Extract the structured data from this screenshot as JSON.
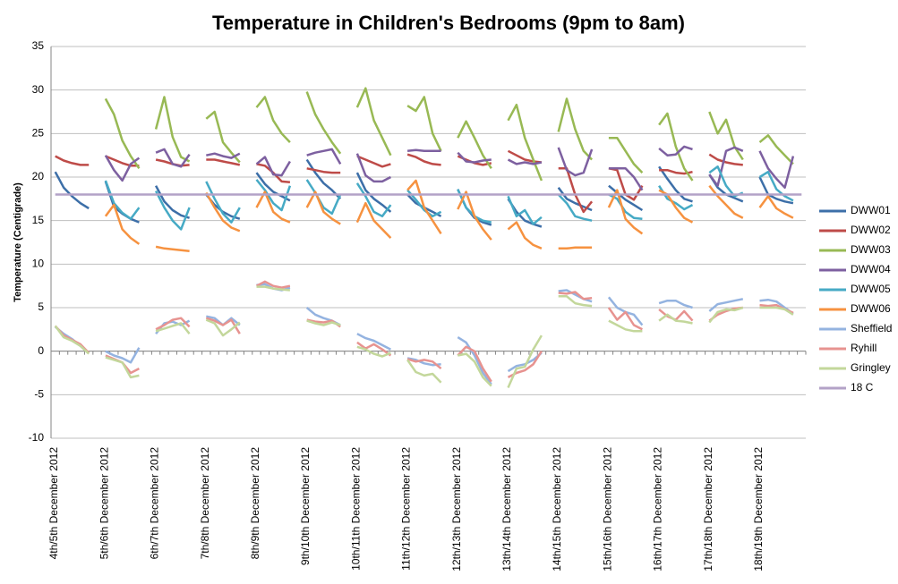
{
  "chart_data": {
    "type": "line",
    "title": "Temperature in Children's Bedrooms (9pm to 8am)",
    "y_label": "Temperature (Centigrade)",
    "categories": [
      "4th/5th December 2012",
      null,
      null,
      null,
      null,
      null,
      "5th/6th December 2012",
      null,
      null,
      null,
      null,
      null,
      "6th/7th December 2012",
      null,
      null,
      null,
      null,
      null,
      "7th/8th December 2012",
      null,
      null,
      null,
      null,
      null,
      "8th/9th December 2012",
      null,
      null,
      null,
      null,
      null,
      "9th/10th December 2012",
      null,
      null,
      null,
      null,
      null,
      "10th/11th December 2012",
      null,
      null,
      null,
      null,
      null,
      "11th/12th December 2012",
      null,
      null,
      null,
      null,
      null,
      "12th/13th December 2012",
      null,
      null,
      null,
      null,
      null,
      "13th/14th December 2012",
      null,
      null,
      null,
      null,
      null,
      "14th/15th December 2012",
      null,
      null,
      null,
      null,
      null,
      "15th/16th December 2012",
      null,
      null,
      null,
      null,
      null,
      "16th/17th December 2012",
      null,
      null,
      null,
      null,
      null,
      "17th/18th December 2012",
      null,
      null,
      null,
      null,
      null,
      "18th/19th December 2012",
      null,
      null,
      null,
      null,
      null
    ],
    "ylim": [
      -10,
      35
    ],
    "yticks": [
      -10,
      -5,
      0,
      5,
      10,
      15,
      20,
      25,
      30,
      35
    ],
    "grid": true,
    "legend": "right",
    "series": [
      {
        "name": "DWW01",
        "color": "#3d6fa8",
        "values": [
          20.6,
          18.8,
          17.8,
          17.0,
          16.4,
          null,
          19.5,
          16.6,
          15.8,
          15.2,
          14.8,
          null,
          19.0,
          17.2,
          16.2,
          15.6,
          15.3,
          null,
          18.0,
          16.8,
          16.0,
          15.5,
          15.2,
          null,
          20.5,
          19.2,
          18.3,
          17.8,
          17.3,
          null,
          22.0,
          20.5,
          19.3,
          18.5,
          17.5,
          null,
          20.5,
          18.5,
          17.5,
          16.8,
          16.0,
          null,
          18.0,
          17.0,
          16.5,
          16.0,
          15.5,
          null,
          18.6,
          16.5,
          15.3,
          14.8,
          14.5,
          null,
          17.5,
          16.0,
          15.0,
          14.6,
          14.3,
          null,
          18.8,
          17.5,
          17.0,
          16.6,
          16.2,
          null,
          19.0,
          18.2,
          17.4,
          16.8,
          16.2,
          null,
          21.2,
          19.8,
          18.5,
          17.5,
          17.2,
          null,
          20.3,
          18.8,
          18.0,
          17.6,
          17.2,
          null,
          20.0,
          18.0,
          17.5,
          17.2,
          17.0,
          null
        ]
      },
      {
        "name": "DWW02",
        "color": "#be4b48",
        "values": [
          22.4,
          21.9,
          21.6,
          21.4,
          21.4,
          null,
          22.4,
          22.0,
          21.6,
          21.3,
          21.3,
          null,
          22.0,
          21.8,
          21.5,
          21.3,
          21.4,
          null,
          22.0,
          22.0,
          21.8,
          21.6,
          21.4,
          null,
          21.5,
          21.3,
          20.5,
          19.5,
          19.4,
          null,
          21.0,
          20.8,
          20.6,
          20.5,
          20.5,
          null,
          22.4,
          22.0,
          21.6,
          21.2,
          21.5,
          null,
          22.6,
          22.3,
          21.8,
          21.5,
          21.4,
          null,
          22.4,
          22.0,
          21.6,
          21.4,
          21.6,
          null,
          23.0,
          22.5,
          22.0,
          21.8,
          21.7,
          null,
          21.0,
          21.0,
          18.0,
          16.0,
          17.2,
          null,
          21.0,
          20.8,
          18.0,
          17.4,
          19.0,
          null,
          20.8,
          20.8,
          20.5,
          20.4,
          20.6,
          null,
          22.6,
          22.0,
          21.7,
          21.5,
          21.4,
          null,
          null,
          null,
          null,
          null,
          null,
          null
        ]
      },
      {
        "name": "DWW03",
        "color": "#98b954",
        "values": [
          null,
          null,
          null,
          null,
          null,
          null,
          29.0,
          27.2,
          24.2,
          22.4,
          21.0,
          null,
          25.5,
          29.2,
          24.6,
          22.3,
          21.8,
          null,
          26.7,
          27.5,
          24.0,
          22.8,
          21.7,
          null,
          28.0,
          29.2,
          26.5,
          25.0,
          24.0,
          null,
          29.8,
          27.2,
          25.5,
          24.0,
          22.7,
          null,
          28.0,
          30.2,
          26.5,
          24.5,
          22.5,
          null,
          28.2,
          27.6,
          29.2,
          25.0,
          23.0,
          null,
          24.5,
          26.4,
          24.5,
          22.5,
          21.0,
          null,
          26.5,
          28.3,
          24.5,
          22.0,
          19.6,
          null,
          25.2,
          29.0,
          25.5,
          23.0,
          22.0,
          null,
          24.5,
          24.5,
          23.0,
          21.5,
          20.5,
          null,
          26.0,
          27.3,
          23.5,
          21.0,
          19.6,
          null,
          27.5,
          25.0,
          26.6,
          23.5,
          22.0,
          null,
          24.0,
          24.8,
          23.5,
          22.5,
          21.5,
          null
        ]
      },
      {
        "name": "DWW04",
        "color": "#7d60a0",
        "values": [
          null,
          null,
          null,
          null,
          null,
          null,
          22.5,
          20.8,
          19.6,
          21.5,
          22.2,
          null,
          22.8,
          23.2,
          21.5,
          21.2,
          22.6,
          null,
          22.5,
          22.7,
          22.4,
          22.2,
          22.7,
          null,
          21.5,
          22.3,
          20.3,
          20.2,
          21.8,
          null,
          22.5,
          22.8,
          23.0,
          23.2,
          21.5,
          null,
          22.7,
          20.2,
          19.5,
          19.5,
          20.0,
          null,
          23.0,
          23.1,
          23.0,
          23.0,
          23.0,
          null,
          22.8,
          21.8,
          21.7,
          21.9,
          22.0,
          null,
          22.0,
          21.5,
          21.7,
          21.5,
          21.7,
          null,
          23.4,
          20.8,
          20.2,
          20.5,
          23.2,
          null,
          21.0,
          21.0,
          21.0,
          20.0,
          18.5,
          null,
          23.3,
          22.5,
          22.6,
          23.5,
          23.2,
          null,
          20.3,
          19.0,
          23.0,
          23.4,
          23.0,
          null,
          23.0,
          21.0,
          19.8,
          18.8,
          22.4,
          null
        ]
      },
      {
        "name": "DWW05",
        "color": "#46aac5",
        "values": [
          null,
          null,
          null,
          null,
          null,
          null,
          19.6,
          17.0,
          15.9,
          15.2,
          16.5,
          null,
          18.4,
          16.5,
          15.0,
          14.0,
          16.5,
          null,
          19.5,
          17.5,
          15.8,
          14.8,
          16.5,
          null,
          19.7,
          18.5,
          17.0,
          16.2,
          19.0,
          null,
          19.7,
          18.2,
          16.5,
          15.8,
          18.0,
          null,
          19.3,
          17.8,
          16.0,
          15.5,
          16.8,
          null,
          18.5,
          17.4,
          16.2,
          15.5,
          16.0,
          null,
          18.6,
          16.5,
          15.5,
          15.0,
          14.8,
          null,
          17.8,
          15.5,
          16.2,
          14.6,
          15.4,
          null,
          18.0,
          17.0,
          15.5,
          15.2,
          15.0,
          null,
          18.0,
          17.5,
          16.0,
          15.3,
          15.2,
          null,
          19.0,
          17.5,
          17.0,
          16.3,
          16.8,
          null,
          20.5,
          21.2,
          19.0,
          17.8,
          18.2,
          null,
          20.0,
          20.6,
          18.6,
          17.8,
          17.3,
          null
        ]
      },
      {
        "name": "DWW06",
        "color": "#f69240",
        "values": [
          null,
          null,
          null,
          null,
          null,
          null,
          15.5,
          16.8,
          14.0,
          13.0,
          12.3,
          null,
          12.0,
          11.8,
          11.7,
          11.6,
          11.5,
          null,
          18.2,
          16.5,
          15.0,
          14.2,
          13.8,
          null,
          16.5,
          18.3,
          16.0,
          15.2,
          14.8,
          null,
          16.5,
          18.3,
          16.0,
          15.2,
          14.6,
          null,
          14.8,
          17.0,
          15.0,
          14.0,
          13.0,
          null,
          18.5,
          19.6,
          16.5,
          15.0,
          13.5,
          null,
          16.3,
          18.3,
          15.5,
          14.0,
          12.8,
          null,
          14.0,
          14.8,
          13.0,
          12.2,
          11.8,
          null,
          11.8,
          11.8,
          11.9,
          11.9,
          11.9,
          null,
          16.5,
          18.5,
          15.2,
          14.2,
          13.5,
          null,
          18.5,
          18.0,
          16.5,
          15.3,
          14.8,
          null,
          19.0,
          17.8,
          16.8,
          15.8,
          15.3,
          null,
          16.5,
          17.8,
          16.4,
          15.8,
          15.3,
          null
        ]
      },
      {
        "name": "Sheffield",
        "color": "#94b3e0",
        "values": [
          2.8,
          2.0,
          1.4,
          0.6,
          -0.2,
          null,
          0.0,
          -0.5,
          -0.8,
          -1.3,
          0.4,
          null,
          2.0,
          3.2,
          3.4,
          3.0,
          3.5,
          null,
          4.0,
          3.8,
          3.0,
          3.8,
          3.0,
          null,
          7.6,
          7.7,
          7.2,
          7.0,
          7.3,
          null,
          5.0,
          4.2,
          3.8,
          3.5,
          3.0,
          null,
          2.0,
          1.5,
          1.2,
          0.7,
          0.2,
          null,
          -0.8,
          -1.0,
          -1.4,
          -1.6,
          -1.5,
          null,
          1.6,
          1.0,
          -0.5,
          -2.5,
          -3.8,
          null,
          -2.3,
          -1.7,
          -1.5,
          -1.0,
          -0.2,
          null,
          6.9,
          7.0,
          6.5,
          6.0,
          5.7,
          null,
          6.2,
          5.0,
          4.5,
          4.2,
          3.0,
          null,
          5.5,
          5.8,
          5.8,
          5.3,
          5.0,
          null,
          4.6,
          5.4,
          5.6,
          5.8,
          6.0,
          null,
          5.8,
          5.9,
          5.7,
          5.0,
          4.3,
          null
        ]
      },
      {
        "name": "Ryhill",
        "color": "#e79390",
        "values": [
          2.9,
          1.8,
          1.3,
          0.8,
          -0.2,
          null,
          -0.5,
          -0.9,
          -1.3,
          -2.5,
          -2.0,
          null,
          2.5,
          3.0,
          3.6,
          3.8,
          2.8,
          null,
          3.8,
          3.5,
          3.0,
          3.6,
          2.0,
          null,
          7.5,
          8.0,
          7.5,
          7.3,
          7.5,
          null,
          3.6,
          3.4,
          3.3,
          3.5,
          2.8,
          null,
          1.0,
          0.3,
          0.8,
          0.2,
          -0.5,
          null,
          -0.9,
          -1.2,
          -1.0,
          -1.2,
          -2.0,
          null,
          -0.5,
          0.5,
          0.0,
          -2.0,
          -3.5,
          null,
          -3.0,
          -2.5,
          -2.2,
          -1.5,
          0.0,
          null,
          6.7,
          6.6,
          6.8,
          6.0,
          6.1,
          null,
          5.0,
          3.6,
          4.5,
          3.0,
          2.5,
          null,
          4.8,
          4.0,
          3.6,
          4.6,
          3.5,
          null,
          3.5,
          4.2,
          4.6,
          4.9,
          5.0,
          null,
          5.3,
          5.2,
          5.3,
          4.8,
          4.4,
          null
        ]
      },
      {
        "name": "Gringley",
        "color": "#c3d79b",
        "values": [
          2.9,
          1.6,
          1.2,
          0.6,
          -0.3,
          null,
          -0.7,
          -1.0,
          -1.3,
          -3.0,
          -2.8,
          null,
          2.3,
          2.6,
          2.9,
          3.2,
          2.0,
          null,
          3.6,
          3.2,
          1.8,
          2.5,
          3.3,
          null,
          7.4,
          7.4,
          7.2,
          7.1,
          7.0,
          null,
          3.5,
          3.2,
          3.0,
          3.3,
          3.0,
          null,
          0.5,
          0.2,
          -0.3,
          -0.6,
          -0.2,
          null,
          -1.0,
          -2.4,
          -2.8,
          -2.6,
          -3.6,
          null,
          -0.5,
          -0.3,
          -1.2,
          -3.0,
          -4.0,
          null,
          -4.2,
          -2.0,
          -1.8,
          0.2,
          1.8,
          null,
          6.3,
          6.3,
          5.5,
          5.3,
          5.2,
          null,
          3.5,
          3.0,
          2.5,
          2.3,
          2.3,
          null,
          3.5,
          4.2,
          3.5,
          3.4,
          3.2,
          null,
          3.3,
          4.5,
          4.8,
          4.7,
          5.0,
          null,
          5.0,
          5.0,
          5.0,
          4.8,
          4.2,
          null
        ]
      },
      {
        "name": "18 C",
        "color": "#b3a2c7",
        "values": [
          18,
          18,
          18,
          18,
          18,
          18,
          18,
          18,
          18,
          18,
          18,
          18,
          18,
          18,
          18,
          18,
          18,
          18,
          18,
          18,
          18,
          18,
          18,
          18,
          18,
          18,
          18,
          18,
          18,
          18,
          18,
          18,
          18,
          18,
          18,
          18,
          18,
          18,
          18,
          18,
          18,
          18,
          18,
          18,
          18,
          18,
          18,
          18,
          18,
          18,
          18,
          18,
          18,
          18,
          18,
          18,
          18,
          18,
          18,
          18,
          18,
          18,
          18,
          18,
          18,
          18,
          18,
          18,
          18,
          18,
          18,
          18,
          18,
          18,
          18,
          18,
          18,
          18,
          18,
          18,
          18,
          18,
          18,
          18,
          18,
          18,
          18,
          18,
          18,
          18
        ]
      }
    ]
  }
}
